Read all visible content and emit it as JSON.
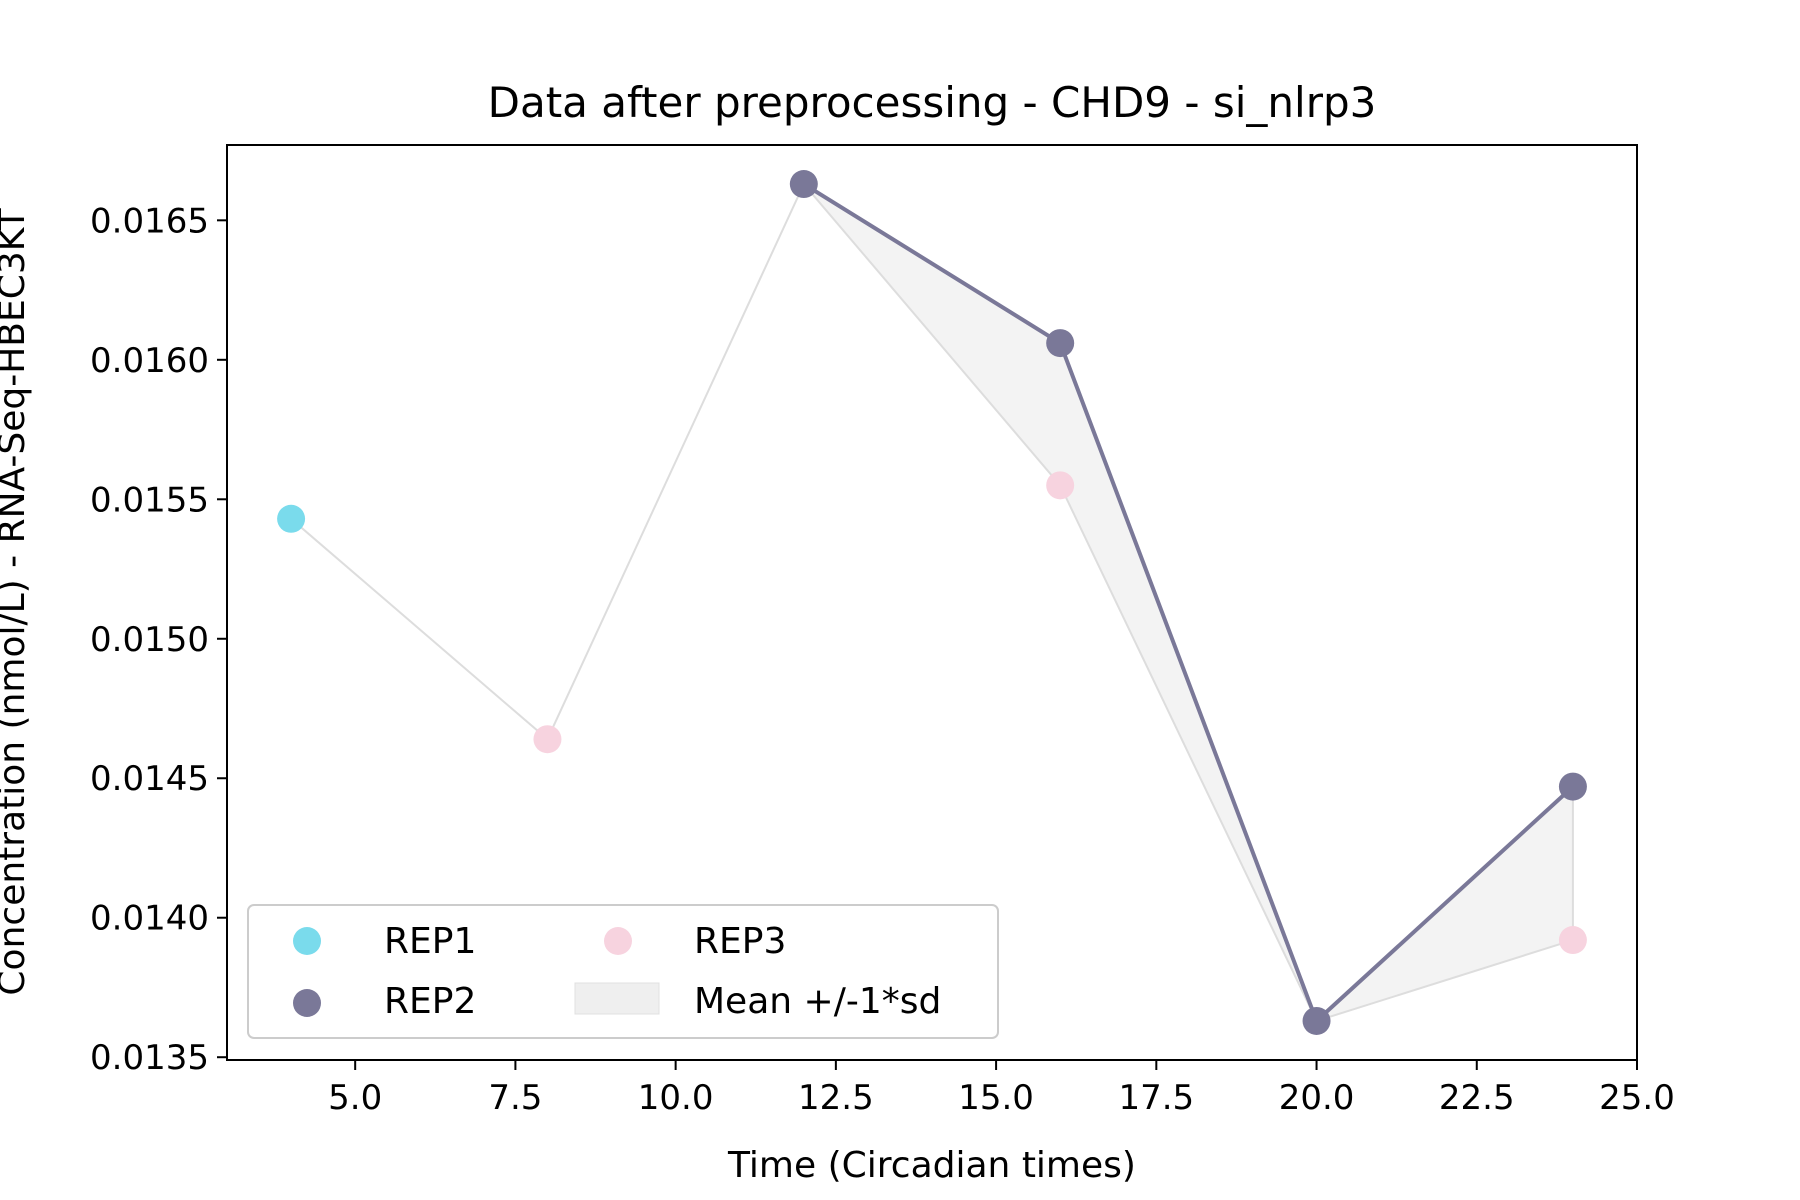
{
  "chart_data": {
    "type": "scatter",
    "title": "Data after preprocessing - CHD9 - si_nlrp3",
    "xlabel": "Time (Circadian times)",
    "ylabel": "Concentration (nmol/L) - RNA-Seq-HBEC3KT",
    "xlim": [
      3.0,
      25.0
    ],
    "ylim": [
      0.01349,
      0.01677
    ],
    "xticks": [
      "5.0",
      "7.5",
      "10.0",
      "12.5",
      "15.0",
      "17.5",
      "20.0",
      "22.5",
      "25.0"
    ],
    "yticks": [
      "0.0135",
      "0.0140",
      "0.0145",
      "0.0150",
      "0.0155",
      "0.0160",
      "0.0165"
    ],
    "grid": false,
    "legend_position": "lower-left",
    "series": [
      {
        "name": "REP1",
        "color": "#7adbec",
        "points": [
          [
            4,
            0.01543
          ]
        ]
      },
      {
        "name": "REP2",
        "color": "#7a7898",
        "connected": true,
        "points": [
          [
            12,
            0.01663
          ],
          [
            16,
            0.01606
          ],
          [
            20,
            0.01363
          ],
          [
            24,
            0.01447
          ]
        ]
      },
      {
        "name": "REP3",
        "color": "#f7d3df",
        "points": [
          [
            8,
            0.01464
          ],
          [
            16,
            0.01555
          ],
          [
            24,
            0.01392
          ]
        ]
      }
    ],
    "band": {
      "name": "Mean +/-1*sd",
      "color": "#efefef",
      "x": [
        4,
        8,
        12,
        16,
        20,
        24
      ],
      "upper": [
        0.01543,
        0.01464,
        0.01663,
        0.01606,
        0.01363,
        0.01447
      ],
      "lower": [
        0.01543,
        0.01464,
        0.01663,
        0.01555,
        0.01363,
        0.01392
      ]
    }
  }
}
